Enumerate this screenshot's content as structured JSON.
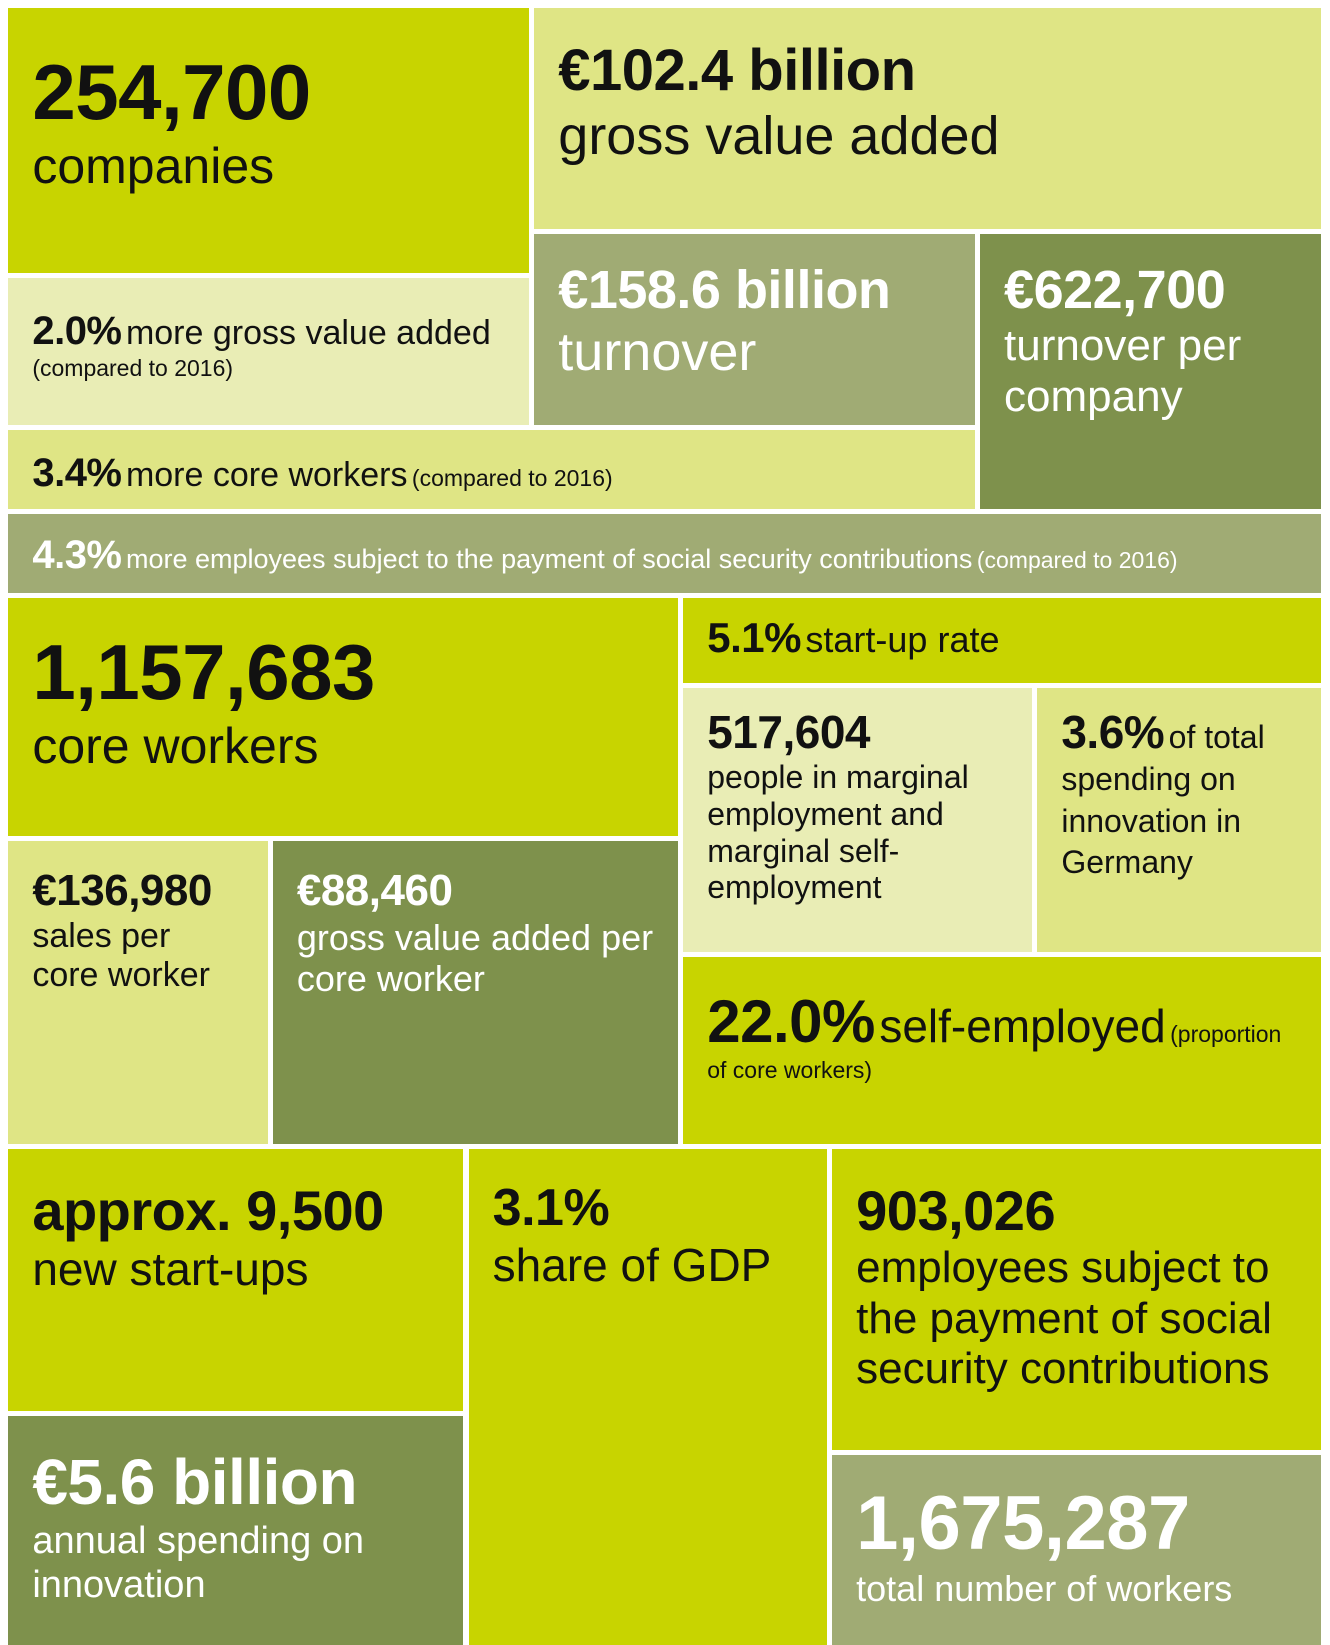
{
  "tiles": [
    {
      "value": "254,700",
      "text": "companies"
    },
    {
      "value": "€102.4 billion",
      "text": "gross value added"
    },
    {
      "value": "2.0%",
      "text": "more gross value added",
      "note": "(compared to 2016)"
    },
    {
      "value": "€158.6 billion",
      "text": "turnover"
    },
    {
      "value": "€622,700",
      "text": "turnover per company"
    },
    {
      "value": "3.4%",
      "text": "more core workers",
      "note": "(compared to 2016)"
    },
    {
      "value": "4.3%",
      "text": "more employees subject to the payment of social security contributions",
      "note": "(compared to 2016)"
    },
    {
      "value": "1,157,683",
      "text": "core workers"
    },
    {
      "value": "5.1%",
      "text": "start-up rate"
    },
    {
      "value": "517,604",
      "text": "people in marginal employment and marginal self-employment"
    },
    {
      "value": "3.6%",
      "text": "of total spending on innovation in Germany"
    },
    {
      "value": "€136,980",
      "text": "sales per core worker"
    },
    {
      "value": "€88,460",
      "text": "gross value added per core worker"
    },
    {
      "value": "22.0%",
      "text": "self-employed",
      "note": "(proportion of core workers)"
    },
    {
      "value": "approx. 9,500",
      "text": "new start-ups"
    },
    {
      "value": "3.1%",
      "text": "share of GDP"
    },
    {
      "value": "903,026",
      "text": "employees subject to the payment of social security contributions"
    },
    {
      "value": "€5.6 billion",
      "text": "annual spending on innovation"
    },
    {
      "value": "1,675,287",
      "text": "total number of workers"
    }
  ]
}
